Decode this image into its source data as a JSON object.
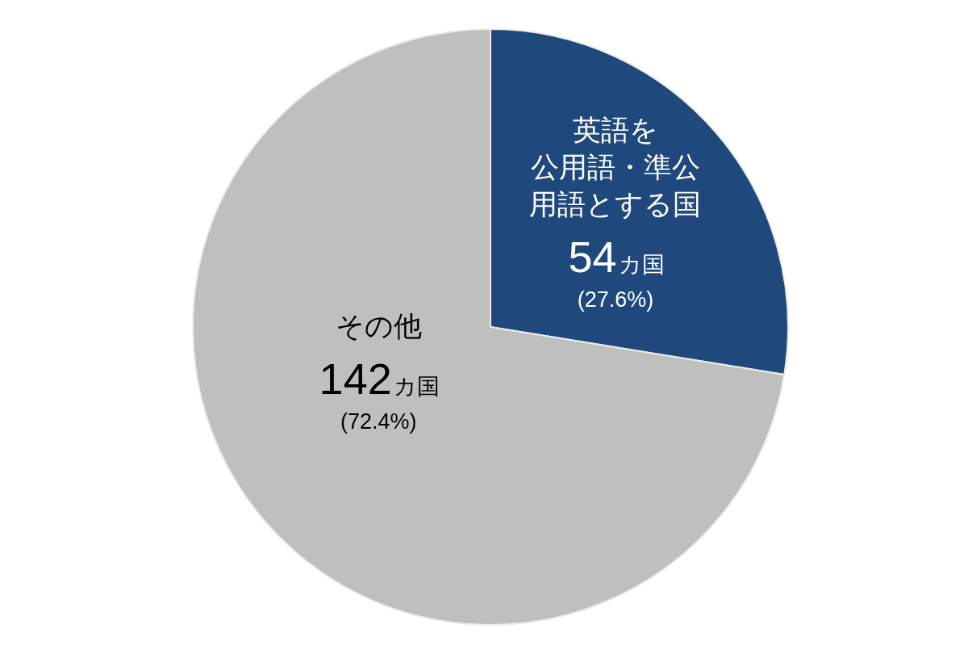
{
  "chart_data": {
    "type": "pie",
    "categories": [
      "英語を公用語・準公用語とする国",
      "その他"
    ],
    "values": [
      54,
      142
    ],
    "colors": [
      "#1f497d",
      "#bfbfbf"
    ],
    "value_labels": [
      "54カ国 (27.6%)",
      "142カ国 (72.4%)"
    ]
  }
}
